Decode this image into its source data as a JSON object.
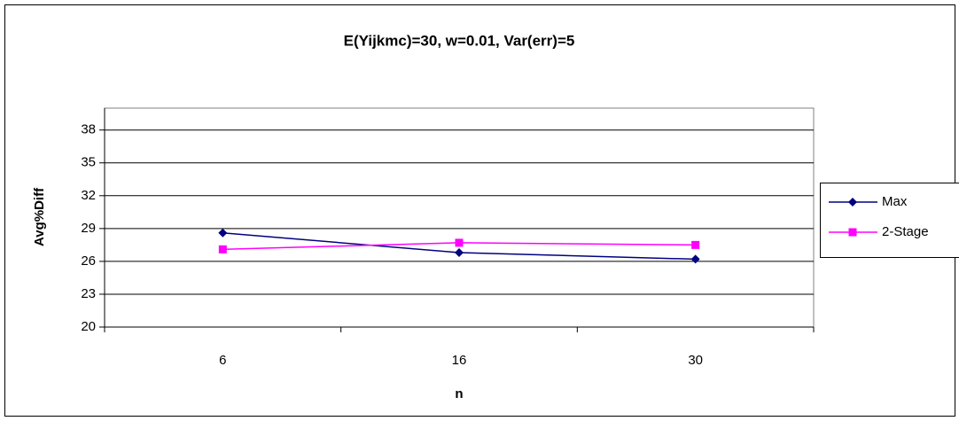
{
  "chart_data": {
    "type": "line",
    "title": "E(Yijkmc)=30, w=0.01, Var(err)=5",
    "x_label": "n",
    "y_label": "Avg%Diff",
    "categories": [
      "6",
      "16",
      "30"
    ],
    "series": [
      {
        "name": "Max",
        "color": "#000080",
        "marker": "diamond",
        "values": [
          28.6,
          26.8,
          26.2
        ]
      },
      {
        "name": "2-Stage",
        "color": "#ff00ff",
        "marker": "square",
        "values": [
          27.1,
          27.7,
          27.5
        ]
      }
    ],
    "ylim": [
      20,
      40
    ],
    "yticks": [
      20,
      23,
      26,
      29,
      32,
      35,
      38
    ],
    "grid": true,
    "legend": "right"
  }
}
